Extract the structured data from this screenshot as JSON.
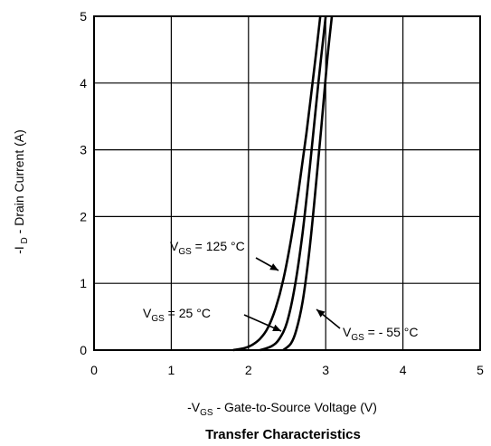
{
  "chart_data": {
    "type": "line",
    "title": "Transfer Characteristics",
    "xlabel": {
      "prefix": "-V",
      "sub": "GS",
      "suffix": " - Gate-to-Source Voltage (V)"
    },
    "ylabel": {
      "prefix": "-I",
      "sub": " D",
      "suffix": " - Drain Current (A)"
    },
    "xlim": [
      0,
      5
    ],
    "ylim": [
      0,
      5
    ],
    "xticks": [
      "0",
      "1",
      "2",
      "3",
      "4",
      "5"
    ],
    "yticks": [
      "0",
      "1",
      "2",
      "3",
      "4",
      "5"
    ],
    "grid": true,
    "legend": "none",
    "series": [
      {
        "name": {
          "prefix": "V",
          "sub": "GS",
          "suffix": " = 125 °C"
        },
        "x": [
          1.8,
          1.95,
          2.05,
          2.15,
          2.25,
          2.35,
          2.45,
          2.55,
          2.65,
          2.75,
          2.85,
          2.93
        ],
        "y": [
          0.0,
          0.03,
          0.08,
          0.17,
          0.33,
          0.62,
          1.05,
          1.65,
          2.4,
          3.25,
          4.2,
          5.0
        ]
      },
      {
        "name": {
          "prefix": "V",
          "sub": "GS",
          "suffix": " = 25 °C"
        },
        "x": [
          2.15,
          2.3,
          2.4,
          2.5,
          2.6,
          2.7,
          2.8,
          2.9,
          3.0
        ],
        "y": [
          0.0,
          0.06,
          0.17,
          0.42,
          0.95,
          1.75,
          2.8,
          3.95,
          5.0
        ]
      },
      {
        "name": {
          "prefix": "V",
          "sub": "GS",
          "suffix": " = - 55 °C"
        },
        "x": [
          2.45,
          2.55,
          2.62,
          2.7,
          2.78,
          2.86,
          2.94,
          3.02,
          3.08
        ],
        "y": [
          0.0,
          0.1,
          0.3,
          0.72,
          1.4,
          2.3,
          3.3,
          4.35,
          5.0
        ]
      }
    ]
  }
}
